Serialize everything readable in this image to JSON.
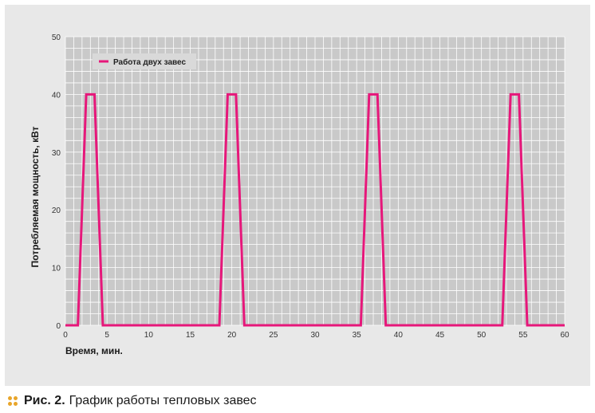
{
  "caption": {
    "label": "Рис. 2.",
    "text": "График работы тепловых завес"
  },
  "colors": {
    "series": "#e6177a",
    "dots": "#e8a52a",
    "panel": "#e8e8e8",
    "plot_background": "#c9c9c9",
    "grid": "#ffffff"
  },
  "chart_data": {
    "type": "line",
    "title": "",
    "xlabel": "Время, мин.",
    "ylabel": "Потребляемая мощность, кВт",
    "xlim": [
      0,
      60
    ],
    "ylim": [
      0,
      50
    ],
    "x_ticks": [
      0,
      5,
      10,
      15,
      20,
      25,
      30,
      35,
      40,
      45,
      50,
      55,
      60
    ],
    "y_ticks": [
      0,
      10,
      20,
      30,
      40,
      50
    ],
    "grid": true,
    "legend_position": "top-left",
    "series": [
      {
        "name": "Работа двух завес",
        "x": [
          0,
          1.5,
          2.5,
          3.5,
          4.5,
          18.5,
          19.5,
          20.5,
          21.5,
          35.5,
          36.5,
          37.5,
          38.5,
          52.5,
          53.5,
          54.5,
          55.5,
          60
        ],
        "y": [
          0,
          0,
          40,
          40,
          0,
          0,
          40,
          40,
          0,
          0,
          40,
          40,
          0,
          0,
          40,
          40,
          0,
          0
        ]
      }
    ]
  }
}
